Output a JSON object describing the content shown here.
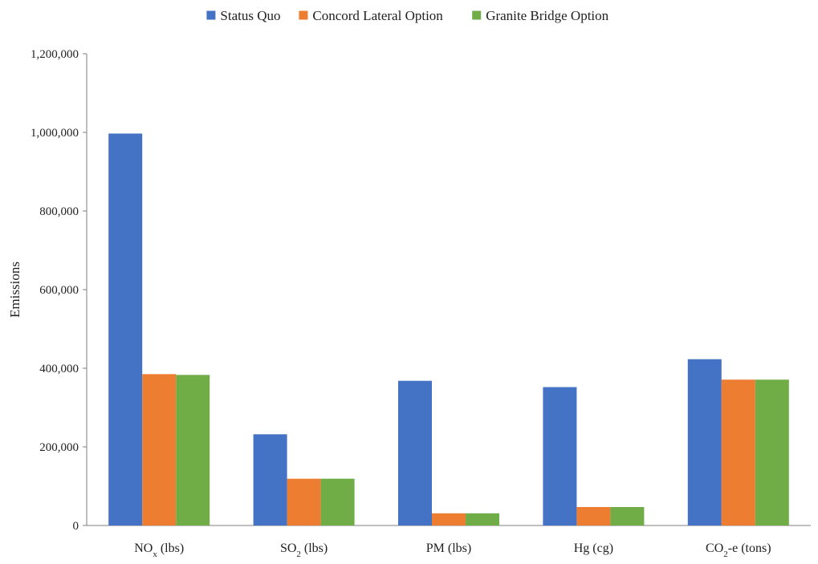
{
  "chart_data": {
    "type": "bar",
    "title": "",
    "xlabel": "",
    "ylabel": "Emissions",
    "ylim": [
      0,
      1200000
    ],
    "yticks": [
      "0",
      "200,000",
      "400,000",
      "600,000",
      "800,000",
      "1,000,000",
      "1,200,000"
    ],
    "ytick_values": [
      0,
      200000,
      400000,
      600000,
      800000,
      1000000,
      1200000
    ],
    "categories": [
      {
        "main": "NO",
        "sub": "x",
        "rest": " (lbs)"
      },
      {
        "main": "SO",
        "sub": "2",
        "rest": " (lbs)"
      },
      {
        "main": "PM (lbs)",
        "sub": "",
        "rest": ""
      },
      {
        "main": "Hg (cg)",
        "sub": "",
        "rest": ""
      },
      {
        "main": "CO",
        "sub": "2",
        "rest": "-e (tons)"
      }
    ],
    "series": [
      {
        "name": "Status Quo",
        "color": "#4472C4",
        "values": [
          997000,
          232000,
          368000,
          352000,
          423000
        ]
      },
      {
        "name": "Concord Lateral Option",
        "color": "#ED7D31",
        "values": [
          385000,
          119000,
          31000,
          47000,
          371000
        ]
      },
      {
        "name": "Granite Bridge Option",
        "color": "#70AD47",
        "values": [
          383000,
          119000,
          31000,
          47000,
          371000
        ]
      }
    ],
    "legend_position": "top",
    "grid": false
  }
}
